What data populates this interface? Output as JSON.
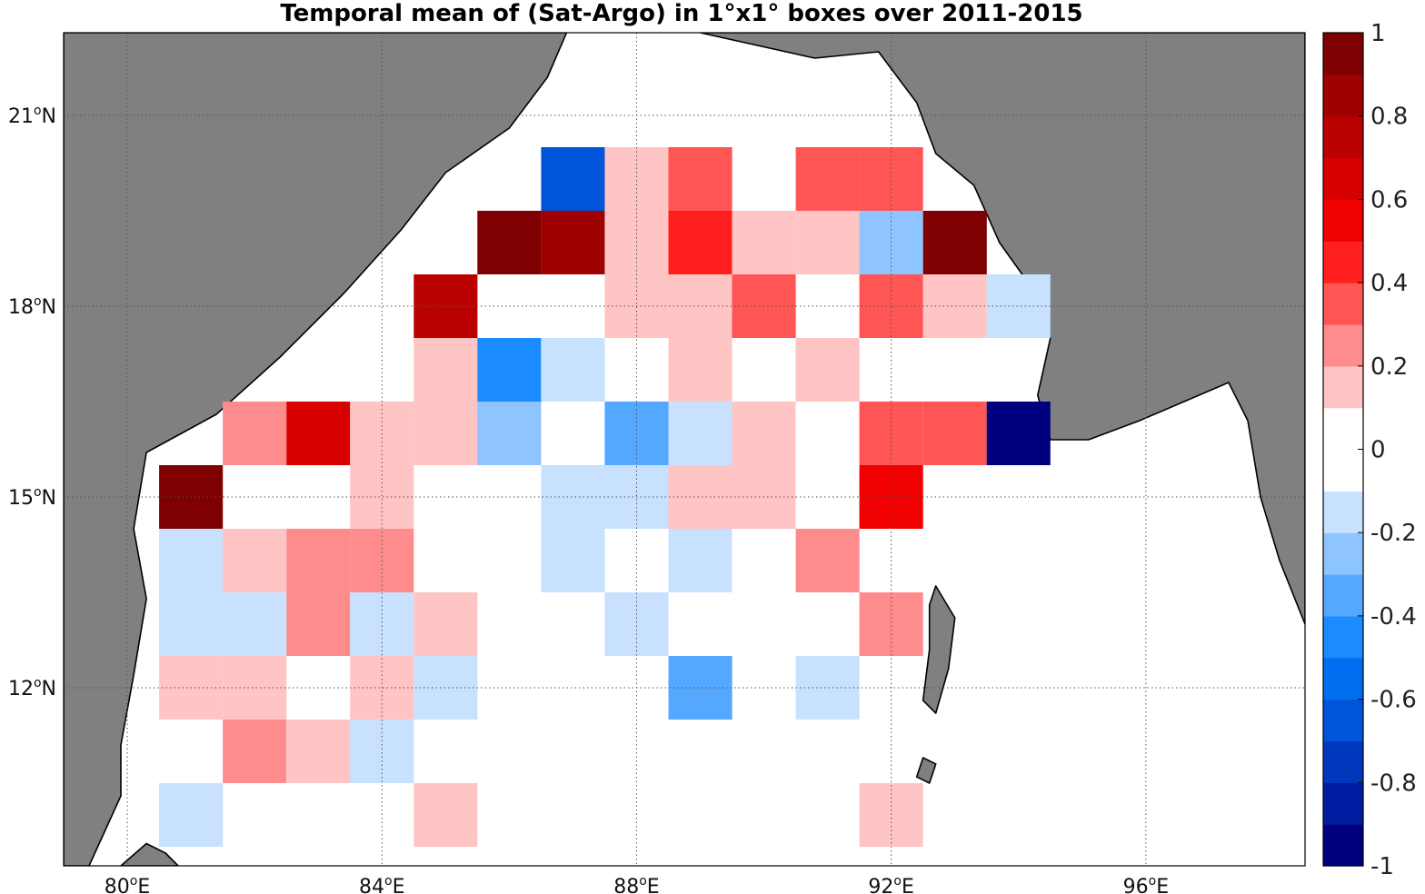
{
  "title": "Temporal mean of (Sat-Argo) in 1°x1° boxes over 2011-2015",
  "map": {
    "lon_range": [
      79,
      98.5
    ],
    "lat_range": [
      9.2,
      22.3
    ],
    "land_color": "#808080",
    "sea_color": "#ffffff",
    "grid": "dotted",
    "lon_ticks": [
      {
        "value": 80,
        "deg": "80",
        "o": "o",
        "hem": "E"
      },
      {
        "value": 84,
        "deg": "84",
        "o": "o",
        "hem": "E"
      },
      {
        "value": 88,
        "deg": "88",
        "o": "o",
        "hem": "E"
      },
      {
        "value": 92,
        "deg": "92",
        "o": "o",
        "hem": "E"
      },
      {
        "value": 96,
        "deg": "96",
        "o": "o",
        "hem": "E"
      }
    ],
    "lat_ticks": [
      {
        "value": 21,
        "deg": "21",
        "o": "o",
        "hem": "N"
      },
      {
        "value": 18,
        "deg": "18",
        "o": "o",
        "hem": "N"
      },
      {
        "value": 15,
        "deg": "15",
        "o": "o",
        "hem": "N"
      },
      {
        "value": 12,
        "deg": "12",
        "o": "o",
        "hem": "N"
      }
    ]
  },
  "colorbar": {
    "min": -1,
    "max": 1,
    "colors": [
      "#00007e",
      "#001ba0",
      "#0038bd",
      "#0054d8",
      "#006fef",
      "#1a8cff",
      "#54a8ff",
      "#8ec4ff",
      "#c8e1ff",
      "#ffffff",
      "#ffffff",
      "#ffc4c4",
      "#ff8c8c",
      "#ff5555",
      "#ff1f1f",
      "#f00000",
      "#d60000",
      "#bb0000",
      "#9f0000",
      "#7e0000"
    ],
    "tick_values": [
      1,
      0.8,
      0.6,
      0.4,
      0.2,
      0,
      -0.2,
      -0.4,
      -0.6,
      -0.8,
      -1
    ],
    "tick_labels": [
      "1",
      "0.8",
      "0.6",
      "0.4",
      "0.2",
      "0",
      "-0.2",
      "-0.4",
      "-0.6",
      "-0.8",
      "-1"
    ]
  },
  "cells": [
    {
      "lon": 87,
      "lat": 20,
      "value": -0.65
    },
    {
      "lon": 88,
      "lat": 20,
      "value": 0.15
    },
    {
      "lon": 89,
      "lat": 20,
      "value": 0.35
    },
    {
      "lon": 91,
      "lat": 20,
      "value": 0.35
    },
    {
      "lon": 92,
      "lat": 20,
      "value": 0.35
    },
    {
      "lon": 86,
      "lat": 19,
      "value": 0.95
    },
    {
      "lon": 87,
      "lat": 19,
      "value": 0.85
    },
    {
      "lon": 88,
      "lat": 19,
      "value": 0.15
    },
    {
      "lon": 89,
      "lat": 19,
      "value": 0.45
    },
    {
      "lon": 90,
      "lat": 19,
      "value": 0.15
    },
    {
      "lon": 91,
      "lat": 19,
      "value": 0.15
    },
    {
      "lon": 92,
      "lat": 19,
      "value": -0.25
    },
    {
      "lon": 93,
      "lat": 19,
      "value": 0.95
    },
    {
      "lon": 85,
      "lat": 18,
      "value": 0.75
    },
    {
      "lon": 88,
      "lat": 18,
      "value": 0.15
    },
    {
      "lon": 89,
      "lat": 18,
      "value": 0.15
    },
    {
      "lon": 90,
      "lat": 18,
      "value": 0.35
    },
    {
      "lon": 92,
      "lat": 18,
      "value": 0.35
    },
    {
      "lon": 93,
      "lat": 18,
      "value": 0.15
    },
    {
      "lon": 94,
      "lat": 18,
      "value": -0.15
    },
    {
      "lon": 85,
      "lat": 17,
      "value": 0.15
    },
    {
      "lon": 86,
      "lat": 17,
      "value": -0.45
    },
    {
      "lon": 87,
      "lat": 17,
      "value": -0.15
    },
    {
      "lon": 89,
      "lat": 17,
      "value": 0.15
    },
    {
      "lon": 91,
      "lat": 17,
      "value": 0.15
    },
    {
      "lon": 82,
      "lat": 16,
      "value": 0.25
    },
    {
      "lon": 83,
      "lat": 16,
      "value": 0.65
    },
    {
      "lon": 84,
      "lat": 16,
      "value": 0.15
    },
    {
      "lon": 85,
      "lat": 16,
      "value": 0.15
    },
    {
      "lon": 86,
      "lat": 16,
      "value": -0.25
    },
    {
      "lon": 88,
      "lat": 16,
      "value": -0.35
    },
    {
      "lon": 89,
      "lat": 16,
      "value": -0.15
    },
    {
      "lon": 90,
      "lat": 16,
      "value": 0.15
    },
    {
      "lon": 92,
      "lat": 16,
      "value": 0.35
    },
    {
      "lon": 93,
      "lat": 16,
      "value": 0.35
    },
    {
      "lon": 94,
      "lat": 16,
      "value": -0.95
    },
    {
      "lon": 81,
      "lat": 15,
      "value": 0.95
    },
    {
      "lon": 84,
      "lat": 15,
      "value": 0.15
    },
    {
      "lon": 87,
      "lat": 15,
      "value": -0.15
    },
    {
      "lon": 88,
      "lat": 15,
      "value": -0.15
    },
    {
      "lon": 89,
      "lat": 15,
      "value": 0.15
    },
    {
      "lon": 90,
      "lat": 15,
      "value": 0.15
    },
    {
      "lon": 92,
      "lat": 15,
      "value": 0.55
    },
    {
      "lon": 81,
      "lat": 14,
      "value": -0.15
    },
    {
      "lon": 82,
      "lat": 14,
      "value": 0.15
    },
    {
      "lon": 83,
      "lat": 14,
      "value": 0.25
    },
    {
      "lon": 84,
      "lat": 14,
      "value": 0.25
    },
    {
      "lon": 87,
      "lat": 14,
      "value": -0.15
    },
    {
      "lon": 89,
      "lat": 14,
      "value": -0.15
    },
    {
      "lon": 91,
      "lat": 14,
      "value": 0.25
    },
    {
      "lon": 81,
      "lat": 13,
      "value": -0.15
    },
    {
      "lon": 82,
      "lat": 13,
      "value": -0.15
    },
    {
      "lon": 83,
      "lat": 13,
      "value": 0.25
    },
    {
      "lon": 84,
      "lat": 13,
      "value": -0.15
    },
    {
      "lon": 85,
      "lat": 13,
      "value": 0.15
    },
    {
      "lon": 88,
      "lat": 13,
      "value": -0.15
    },
    {
      "lon": 92,
      "lat": 13,
      "value": 0.25
    },
    {
      "lon": 81,
      "lat": 12,
      "value": 0.15
    },
    {
      "lon": 82,
      "lat": 12,
      "value": 0.15
    },
    {
      "lon": 84,
      "lat": 12,
      "value": 0.15
    },
    {
      "lon": 85,
      "lat": 12,
      "value": -0.15
    },
    {
      "lon": 89,
      "lat": 12,
      "value": -0.35
    },
    {
      "lon": 91,
      "lat": 12,
      "value": -0.15
    },
    {
      "lon": 82,
      "lat": 11,
      "value": 0.25
    },
    {
      "lon": 83,
      "lat": 11,
      "value": 0.15
    },
    {
      "lon": 84,
      "lat": 11,
      "value": -0.15
    },
    {
      "lon": 81,
      "lat": 10,
      "value": -0.15
    },
    {
      "lon": 85,
      "lat": 10,
      "value": 0.15
    },
    {
      "lon": 92,
      "lat": 10,
      "value": 0.15
    }
  ],
  "land": [
    {
      "name": "india",
      "points": [
        [
          79,
          9.2
        ],
        [
          79,
          22.3
        ],
        [
          86.9,
          22.3
        ],
        [
          86.6,
          21.6
        ],
        [
          86.0,
          20.8
        ],
        [
          85.0,
          20.1
        ],
        [
          84.3,
          19.2
        ],
        [
          83.4,
          18.2
        ],
        [
          82.4,
          17.2
        ],
        [
          81.4,
          16.3
        ],
        [
          80.3,
          15.7
        ],
        [
          80.1,
          14.5
        ],
        [
          80.3,
          13.4
        ],
        [
          80.1,
          12.2
        ],
        [
          79.9,
          11.1
        ],
        [
          79.9,
          10.3
        ],
        [
          79.4,
          9.2
        ]
      ]
    },
    {
      "name": "srilanka",
      "points": [
        [
          79.9,
          9.2
        ],
        [
          80.3,
          9.55
        ],
        [
          80.6,
          9.4
        ],
        [
          80.8,
          9.2
        ]
      ]
    },
    {
      "name": "east",
      "points": [
        [
          89.0,
          22.3
        ],
        [
          90.8,
          21.9
        ],
        [
          91.8,
          22.0
        ],
        [
          92.4,
          21.2
        ],
        [
          92.7,
          20.4
        ],
        [
          93.3,
          19.9
        ],
        [
          93.7,
          19.0
        ],
        [
          94.2,
          18.3
        ],
        [
          94.5,
          17.5
        ],
        [
          94.3,
          16.6
        ],
        [
          94.5,
          15.9
        ],
        [
          95.1,
          15.9
        ],
        [
          95.9,
          16.2
        ],
        [
          96.6,
          16.5
        ],
        [
          97.3,
          16.8
        ],
        [
          97.6,
          16.2
        ],
        [
          97.8,
          15.0
        ],
        [
          98.1,
          14.0
        ],
        [
          98.5,
          13.0
        ],
        [
          98.5,
          22.3
        ]
      ]
    },
    {
      "name": "andaman",
      "points": [
        [
          92.7,
          13.6
        ],
        [
          93.0,
          13.1
        ],
        [
          92.9,
          12.3
        ],
        [
          92.7,
          11.6
        ],
        [
          92.5,
          11.8
        ],
        [
          92.6,
          12.6
        ],
        [
          92.6,
          13.3
        ]
      ]
    },
    {
      "name": "little-andaman",
      "points": [
        [
          92.5,
          10.9
        ],
        [
          92.7,
          10.8
        ],
        [
          92.6,
          10.5
        ],
        [
          92.4,
          10.6
        ]
      ]
    }
  ]
}
